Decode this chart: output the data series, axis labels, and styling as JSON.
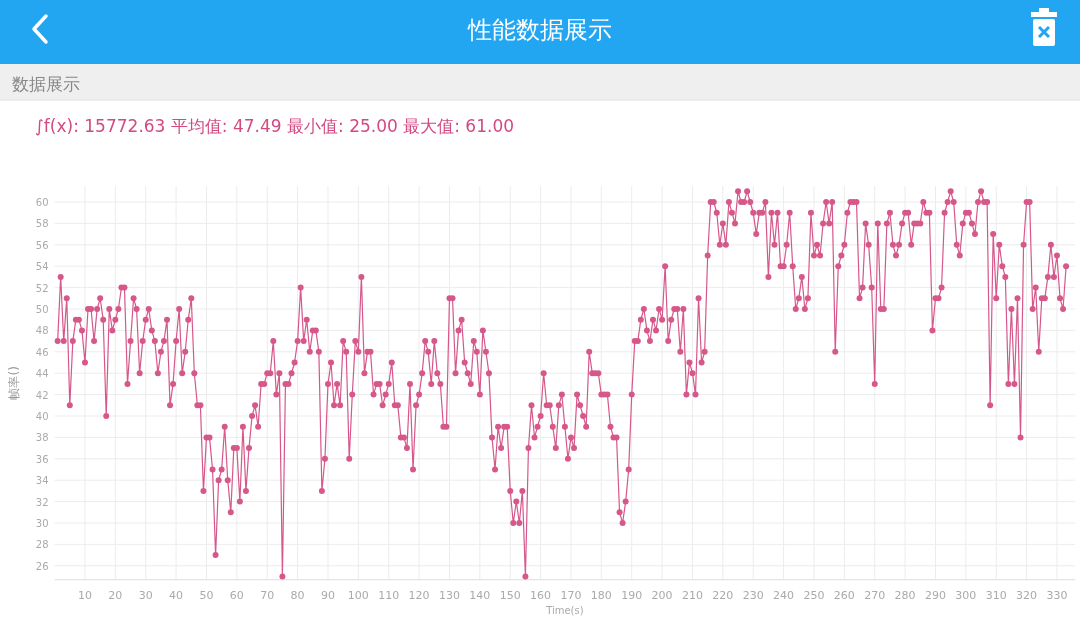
{
  "chart_data": {
    "type": "line",
    "title": "性能数据展示",
    "subtitle": "数据展示",
    "annotations": [
      "∫f(x): 15772.63 平均值: 47.49 最小值: 25.00 最大值: 61.00"
    ],
    "xlabel": "Time(s)",
    "ylabel": "帧率()",
    "x": [
      1,
      2,
      3,
      4,
      5,
      6,
      7,
      8,
      9,
      10,
      11,
      12,
      13,
      14,
      15,
      16,
      17,
      18,
      19,
      20,
      21,
      22,
      23,
      24,
      25,
      26,
      27,
      28,
      29,
      30,
      31,
      32,
      33,
      34,
      35,
      36,
      37,
      38,
      39,
      40,
      41,
      42,
      43,
      44,
      45,
      46,
      47,
      48,
      49,
      50,
      51,
      52,
      53,
      54,
      55,
      56,
      57,
      58,
      59,
      60,
      61,
      62,
      63,
      64,
      65,
      66,
      67,
      68,
      69,
      70,
      71,
      72,
      73,
      74,
      75,
      76,
      77,
      78,
      79,
      80,
      81,
      82,
      83,
      84,
      85,
      86,
      87,
      88,
      89,
      90,
      91,
      92,
      93,
      94,
      95,
      96,
      97,
      98,
      99,
      100,
      101,
      102,
      103,
      104,
      105,
      106,
      107,
      108,
      109,
      110,
      111,
      112,
      113,
      114,
      115,
      116,
      117,
      118,
      119,
      120,
      121,
      122,
      123,
      124,
      125,
      126,
      127,
      128,
      129,
      130,
      131,
      132,
      133,
      134,
      135,
      136,
      137,
      138,
      139,
      140,
      141,
      142,
      143,
      144,
      145,
      146,
      147,
      148,
      149,
      150,
      151,
      152,
      153,
      154,
      155,
      156,
      157,
      158,
      159,
      160,
      161,
      162,
      163,
      164,
      165,
      166,
      167,
      168,
      169,
      170,
      171,
      172,
      173,
      174,
      175,
      176,
      177,
      178,
      179,
      180,
      181,
      182,
      183,
      184,
      185,
      186,
      187,
      188,
      189,
      190,
      191,
      192,
      193,
      194,
      195,
      196,
      197,
      198,
      199,
      200,
      201,
      202,
      203,
      204,
      205,
      206,
      207,
      208,
      209,
      210,
      211,
      212,
      213,
      214,
      215,
      216,
      217,
      218,
      219,
      220,
      221,
      222,
      223,
      224,
      225,
      226,
      227,
      228,
      229,
      230,
      231,
      232,
      233,
      234,
      235,
      236,
      237,
      238,
      239,
      240,
      241,
      242,
      243,
      244,
      245,
      246,
      247,
      248,
      249,
      250,
      251,
      252,
      253,
      254,
      255,
      256,
      257,
      258,
      259,
      260,
      261,
      262,
      263,
      264,
      265,
      266,
      267,
      268,
      269,
      270,
      271,
      272,
      273,
      274,
      275,
      276,
      277,
      278,
      279,
      280,
      281,
      282,
      283,
      284,
      285,
      286,
      287,
      288,
      289,
      290,
      291,
      292,
      293,
      294,
      295,
      296,
      297,
      298,
      299,
      300,
      301,
      302,
      303,
      304,
      305,
      306,
      307,
      308,
      309,
      310,
      311,
      312,
      313,
      314,
      315,
      316,
      317,
      318,
      319,
      320,
      321,
      322,
      323,
      324,
      325,
      326,
      327,
      328,
      329,
      330,
      331,
      332,
      333
    ],
    "values": [
      47,
      53,
      47,
      51,
      41,
      47,
      49,
      49,
      48,
      45,
      50,
      50,
      47,
      50,
      51,
      49,
      40,
      50,
      48,
      49,
      50,
      52,
      52,
      43,
      47,
      51,
      50,
      44,
      47,
      49,
      50,
      48,
      47,
      44,
      46,
      47,
      49,
      41,
      43,
      47,
      50,
      44,
      46,
      49,
      51,
      44,
      41,
      41,
      33,
      38,
      38,
      35,
      27,
      34,
      35,
      39,
      34,
      31,
      37,
      37,
      32,
      39,
      33,
      37,
      40,
      41,
      39,
      43,
      43,
      44,
      44,
      47,
      42,
      44,
      25,
      43,
      43,
      44,
      45,
      47,
      52,
      47,
      49,
      46,
      48,
      48,
      46,
      33,
      36,
      43,
      45,
      41,
      43,
      41,
      47,
      46,
      36,
      42,
      47,
      46,
      53,
      44,
      46,
      46,
      42,
      43,
      43,
      41,
      42,
      43,
      45,
      41,
      41,
      38,
      38,
      37,
      43,
      35,
      41,
      42,
      44,
      47,
      46,
      43,
      47,
      44,
      43,
      39,
      39,
      51,
      51,
      44,
      48,
      49,
      45,
      44,
      43,
      47,
      46,
      42,
      48,
      46,
      44,
      38,
      35,
      39,
      37,
      39,
      39,
      33,
      30,
      32,
      30,
      33,
      25,
      37,
      41,
      38,
      39,
      40,
      44,
      41,
      41,
      39,
      37,
      41,
      42,
      39,
      36,
      38,
      37,
      42,
      41,
      40,
      39,
      46,
      44,
      44,
      44,
      42,
      42,
      42,
      39,
      38,
      38,
      31,
      30,
      32,
      35,
      42,
      47,
      47,
      49,
      50,
      48,
      47,
      49,
      48,
      50,
      49,
      54,
      47,
      49,
      50,
      50,
      46,
      50,
      42,
      45,
      44,
      42,
      51,
      45,
      46,
      55,
      60,
      60,
      59,
      56,
      58,
      56,
      60,
      59,
      58,
      61,
      60,
      60,
      61,
      60,
      59,
      57,
      59,
      59,
      60,
      53,
      59,
      56,
      59,
      54,
      54,
      56,
      59,
      54,
      50,
      51,
      53,
      50,
      51,
      59,
      55,
      56,
      55,
      58,
      60,
      58,
      60,
      46,
      54,
      55,
      56,
      59,
      60,
      60,
      60,
      51,
      52,
      58,
      56,
      52,
      43,
      58,
      50,
      50,
      58,
      59,
      56,
      55,
      56,
      58,
      59,
      59,
      56,
      58,
      58,
      58,
      60,
      59,
      59,
      48,
      51,
      51,
      52,
      59,
      60,
      61,
      60,
      56,
      55,
      58,
      59,
      59,
      58,
      57,
      60,
      61,
      60,
      60,
      41,
      57,
      51,
      56,
      54,
      53,
      43,
      50,
      43,
      51,
      38,
      56,
      60,
      60,
      50,
      52,
      46,
      51,
      51,
      53,
      56,
      53,
      55,
      51,
      50,
      54
    ],
    "color": "#d6578a",
    "xlim": [
      0,
      336
    ],
    "ylim": [
      24.7,
      61.5
    ],
    "xticks": [
      10,
      20,
      30,
      40,
      50,
      60,
      70,
      80,
      90,
      100,
      110,
      120,
      130,
      140,
      150,
      160,
      170,
      180,
      190,
      200,
      210,
      220,
      230,
      240,
      250,
      260,
      270,
      280,
      290,
      300,
      310,
      320,
      330
    ],
    "yticks": [
      26,
      28,
      30,
      32,
      34,
      36,
      38,
      40,
      42,
      44,
      46,
      48,
      50,
      52,
      54,
      56,
      58,
      60
    ],
    "grid": true,
    "marker": "circle",
    "line_style": "solid"
  }
}
